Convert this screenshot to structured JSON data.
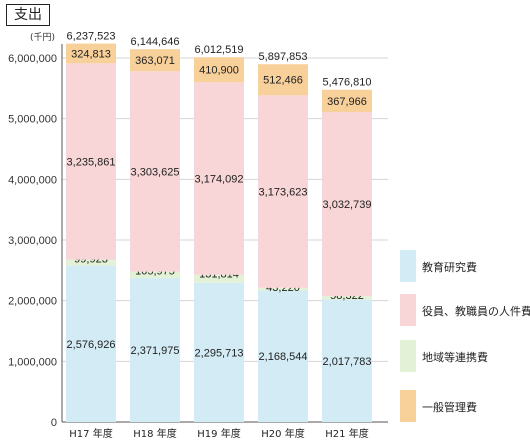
{
  "title": "支出",
  "chart_data": {
    "type": "bar",
    "stacked": true,
    "unit": "(千円)",
    "categories": [
      "H17 年度",
      "H18 年度",
      "H19 年度",
      "H20 年度",
      "H21 年度"
    ],
    "ylim": [
      0,
      6000000
    ],
    "yticks": [
      0,
      1000000,
      2000000,
      3000000,
      4000000,
      5000000,
      6000000
    ],
    "ytick_labels": [
      "0",
      "1,000,000",
      "2,000,000",
      "3,000,000",
      "4,000,000",
      "5,000,000",
      "6,000,000"
    ],
    "grid": true,
    "legend_position": "right",
    "series": [
      {
        "name": "教育研究費",
        "color": "#d2ebf4",
        "values": [
          2576926,
          2371975,
          2295713,
          2168544,
          2017783
        ],
        "labels": [
          "2,576,926",
          "2,371,975",
          "2,295,713",
          "2,168,544",
          "2,017,783"
        ]
      },
      {
        "name": "地域等連携費",
        "color": "#e3f2d7",
        "values": [
          99923,
          105975,
          131814,
          43220,
          58322
        ],
        "labels": [
          "99,923",
          "105,975",
          "131,814",
          "43,220",
          "58,322"
        ]
      },
      {
        "name": "役員、教職員の人件費",
        "color": "#f8d5d6",
        "values": [
          3235861,
          3303625,
          3174092,
          3173623,
          3032739
        ],
        "labels": [
          "3,235,861",
          "3,303,625",
          "3,174,092",
          "3,173,623",
          "3,032,739"
        ]
      },
      {
        "name": "一般管理費",
        "color": "#f8d09a",
        "values": [
          324813,
          363071,
          410900,
          512466,
          367966
        ],
        "labels": [
          "324,813",
          "363,071",
          "410,900",
          "512,466",
          "367,966"
        ]
      }
    ],
    "totals": [
      6237523,
      6144646,
      6012519,
      5897853,
      5476810
    ],
    "total_labels": [
      "6,237,523",
      "6,144,646",
      "6,012,519",
      "5,897,853",
      "5,476,810"
    ],
    "legend_order": [
      "教育研究費",
      "役員、教職員の人件費",
      "地域等連携費",
      "一般管理費"
    ]
  }
}
